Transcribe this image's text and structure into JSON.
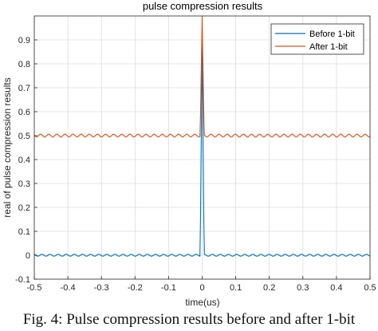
{
  "chart_data": {
    "type": "line",
    "title": "pulse compression results",
    "xlabel": "time(us)",
    "ylabel": "real of pulse compression results",
    "xlim": [
      -0.5,
      0.5
    ],
    "ylim": [
      -0.1,
      1.0
    ],
    "xticks": [
      "-0.5",
      "-0.4",
      "-0.3",
      "-0.2",
      "-0.1",
      "0",
      "0.1",
      "0.2",
      "0.3",
      "0.4",
      "0.5"
    ],
    "yticks": [
      "-0.1",
      "0",
      "0.1",
      "0.2",
      "0.3",
      "0.4",
      "0.5",
      "0.6",
      "0.7",
      "0.8",
      "0.9"
    ],
    "grid": true,
    "legend_position": "top-right",
    "series": [
      {
        "name": "Before 1-bit",
        "color": "#0072BD",
        "baseline": 0.0,
        "ripple": 0.004,
        "peak": {
          "x": 0.0,
          "y": 0.88
        }
      },
      {
        "name": "After 1-bit",
        "color": "#D95319",
        "baseline": 0.5,
        "ripple": 0.006,
        "peak": {
          "x": 0.0,
          "y": 1.0
        }
      }
    ]
  },
  "caption": "Fig. 4: Pulse compression results before and after 1-bit"
}
